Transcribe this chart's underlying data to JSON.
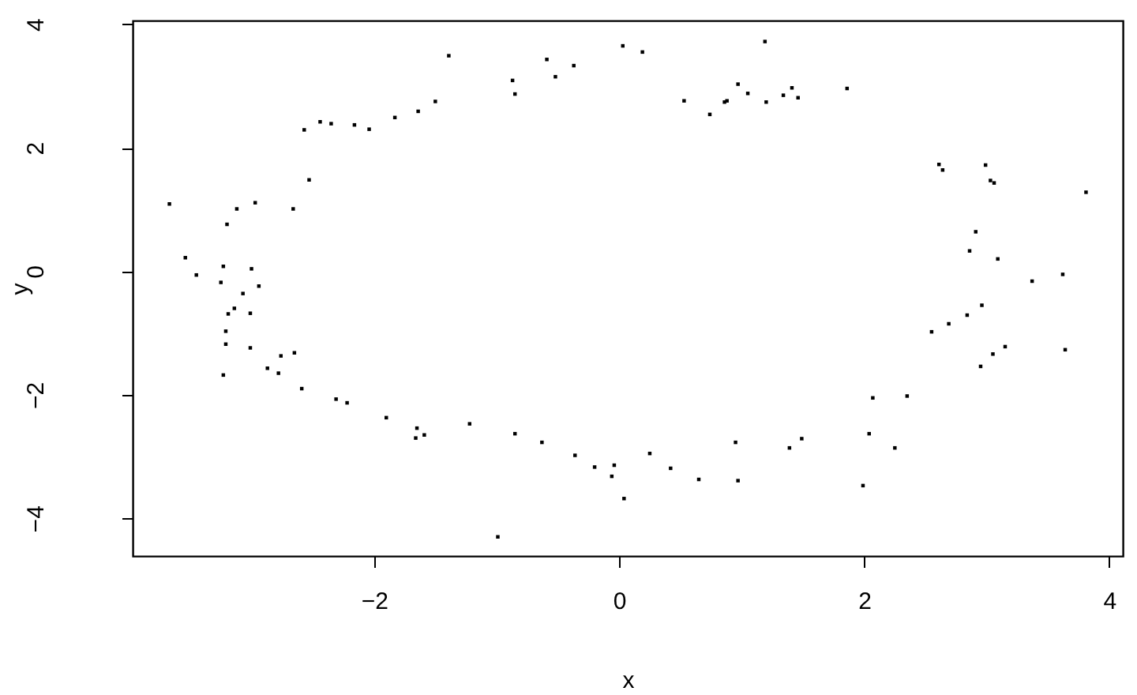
{
  "chart_data": {
    "type": "scatter",
    "xlabel": "x",
    "ylabel": "y",
    "x": [
      -1.39,
      -1.5,
      -1.64,
      -1.83,
      -2.04,
      -2.16,
      -2.35,
      -2.44,
      -2.57,
      -2.53,
      -2.66,
      -2.97,
      -3.12,
      -3.2,
      -3.67,
      -3.54,
      -3.45,
      -3.23,
      -3.0,
      -3.25,
      -2.94,
      -3.07,
      -3.14,
      -3.19,
      -3.01,
      -3.21,
      -3.21,
      -3.01,
      -2.76,
      -2.65,
      -2.87,
      -2.78,
      -3.23,
      -2.59,
      -2.31,
      -2.22,
      -1.9,
      -1.65,
      -1.59,
      -1.66,
      0.03,
      0.19,
      1.19,
      -0.59,
      -0.37,
      -0.87,
      -0.52,
      -0.85,
      0.53,
      0.74,
      0.86,
      0.88,
      0.97,
      1.05,
      1.2,
      1.34,
      1.41,
      1.46,
      1.86,
      2.61,
      2.64,
      2.99,
      3.03,
      3.06,
      3.81,
      2.91,
      2.86,
      3.09,
      3.62,
      3.37,
      2.96,
      2.84,
      2.69,
      2.55,
      3.15,
      3.05,
      2.95,
      3.64,
      2.07,
      2.35,
      1.49,
      1.39,
      2.04,
      2.25,
      1.99,
      -1.22,
      -0.85,
      -0.63,
      -0.36,
      -0.2,
      -0.04,
      -0.06,
      0.25,
      0.42,
      0.04,
      0.65,
      0.95,
      0.97,
      -0.99
    ],
    "series": [
      {
        "color": "#000000",
        "values": [
          3.49,
          2.75,
          2.59,
          2.49,
          2.3,
          2.37,
          2.39,
          2.42,
          2.29,
          1.48,
          1.01,
          1.11,
          1.01,
          0.76,
          1.09,
          0.22,
          -0.06,
          0.08,
          0.04,
          -0.18,
          -0.24,
          -0.36,
          -0.6,
          -0.69,
          -0.68,
          -0.97,
          -1.18,
          -1.24,
          -1.37,
          -1.32,
          -1.57,
          -1.65,
          -1.68,
          -1.9,
          -2.07,
          -2.13,
          -2.37,
          -2.54,
          -2.65,
          -2.7,
          3.65,
          3.55,
          3.72,
          3.43,
          3.33,
          3.09,
          3.15,
          2.87,
          2.76,
          2.54,
          2.74,
          2.76,
          3.03,
          2.88,
          2.74,
          2.85,
          2.97,
          2.81,
          2.96,
          1.73,
          1.64,
          1.72,
          1.47,
          1.43,
          1.28,
          0.64,
          0.33,
          0.2,
          -0.05,
          -0.16,
          -0.55,
          -0.71,
          -0.85,
          -0.98,
          -1.22,
          -1.34,
          -1.54,
          -1.27,
          -2.05,
          -2.02,
          -2.71,
          -2.86,
          -2.63,
          -2.86,
          -3.47,
          -2.47,
          -2.63,
          -2.77,
          -2.98,
          -3.17,
          -3.14,
          -3.32,
          -2.95,
          -3.19,
          -3.68,
          -3.37,
          -2.77,
          -3.39,
          -4.3
        ]
      }
    ],
    "xlim": [
      -3.97,
      4.11
    ],
    "ylim": [
      -4.61,
      4.06
    ],
    "xticks": [
      -2,
      0,
      2,
      4
    ],
    "yticks": [
      -4,
      -2,
      0,
      2,
      4
    ],
    "grid": false,
    "marker": "square"
  }
}
